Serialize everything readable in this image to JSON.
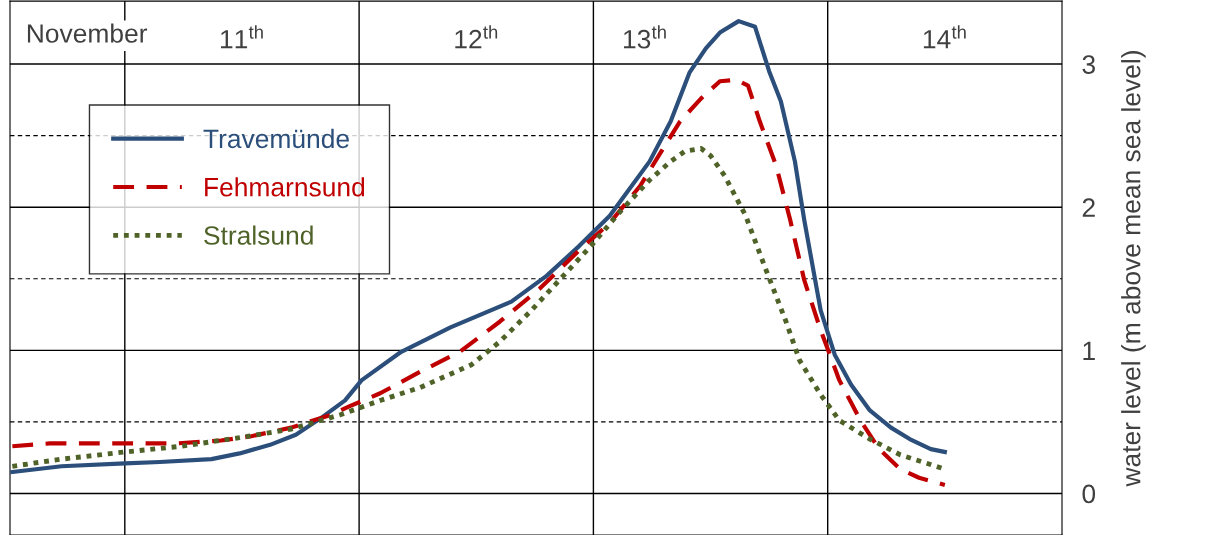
{
  "chart_data": {
    "type": "line",
    "ylabel": "water level (m above mean sea level)",
    "annotations": [
      "November"
    ],
    "xlim": [
      10.51,
      15.0
    ],
    "xticks": [
      {
        "value": 11.5,
        "label": "11$^{th}$"
      },
      {
        "value": 12.5,
        "label": "12$^{th}$"
      },
      {
        "value": 13.22,
        "label": "13$^{th}$"
      },
      {
        "value": 14.5,
        "label": "14$^{th}$"
      }
    ],
    "ylim": [
      -0.29,
      3.44
    ],
    "yticks": [
      0,
      1,
      2,
      3
    ],
    "ref_lines": [
      {
        "axis": "x",
        "value": 11,
        "color": "#000000",
        "line_style": "solid"
      },
      {
        "axis": "x",
        "value": 12,
        "color": "#000000",
        "line_style": "solid"
      },
      {
        "axis": "x",
        "value": 13,
        "color": "#000000",
        "line_style": "solid"
      },
      {
        "axis": "x",
        "value": 14,
        "color": "#000000",
        "line_style": "solid"
      },
      {
        "axis": "y",
        "value": 0.5,
        "color": "#000000",
        "line_style": "dashed"
      },
      {
        "axis": "y",
        "value": 1.5,
        "color": "#000000",
        "line_style": "dashed"
      },
      {
        "axis": "y",
        "value": 2.5,
        "color": "#000000",
        "line_style": "dashed"
      }
    ],
    "grid": "y",
    "legend": "top left",
    "marker": "none",
    "series": [
      {
        "name": "Travemünde",
        "color": "#2b4f7a",
        "line_style": "solid",
        "x": [
          10.52,
          10.73,
          11.0,
          11.15,
          11.37,
          11.49,
          11.62,
          11.73,
          11.84,
          11.94,
          12.01,
          12.18,
          12.39,
          12.65,
          12.8,
          12.94,
          13.07,
          13.24,
          13.33,
          13.41,
          13.48,
          13.54,
          13.62,
          13.69,
          13.75,
          13.8,
          13.86,
          13.9,
          13.97,
          14.03,
          14.1,
          14.18,
          14.27,
          14.35,
          14.44,
          14.5
        ],
        "values": [
          0.15,
          0.19,
          0.21,
          0.22,
          0.24,
          0.28,
          0.34,
          0.41,
          0.53,
          0.65,
          0.79,
          0.99,
          1.16,
          1.34,
          1.52,
          1.73,
          1.94,
          2.32,
          2.6,
          2.94,
          3.11,
          3.22,
          3.3,
          3.26,
          2.95,
          2.74,
          2.32,
          1.91,
          1.28,
          0.97,
          0.76,
          0.58,
          0.46,
          0.38,
          0.31,
          0.29
        ]
      },
      {
        "name": "Fehmarnsund",
        "color": "#c00000",
        "line_style": "dashed",
        "x": [
          10.52,
          10.68,
          11.0,
          11.22,
          11.41,
          11.54,
          11.71,
          11.88,
          11.96,
          12.09,
          12.26,
          12.43,
          12.6,
          12.77,
          12.94,
          13.07,
          13.2,
          13.29,
          13.37,
          13.46,
          13.54,
          13.61,
          13.66,
          13.71,
          13.78,
          13.84,
          13.9,
          13.97,
          14.05,
          14.14,
          14.22,
          14.31,
          14.39,
          14.5
        ],
        "values": [
          0.33,
          0.35,
          0.35,
          0.35,
          0.37,
          0.4,
          0.46,
          0.55,
          0.61,
          0.7,
          0.85,
          0.99,
          1.2,
          1.43,
          1.7,
          1.89,
          2.15,
          2.39,
          2.6,
          2.76,
          2.88,
          2.89,
          2.85,
          2.6,
          2.29,
          1.91,
          1.49,
          1.14,
          0.79,
          0.51,
          0.31,
          0.17,
          0.11,
          0.06
        ]
      },
      {
        "name": "Stralsund",
        "color": "#4f6228",
        "line_style": "dotted",
        "x": [
          10.52,
          10.73,
          11.0,
          11.24,
          11.49,
          11.71,
          11.92,
          12.09,
          12.26,
          12.48,
          12.6,
          12.73,
          12.86,
          12.99,
          13.12,
          13.24,
          13.33,
          13.39,
          13.46,
          13.5,
          13.56,
          13.65,
          13.73,
          13.82,
          13.88,
          13.97,
          14.05,
          14.18,
          14.31,
          14.5
        ],
        "values": [
          0.19,
          0.24,
          0.29,
          0.33,
          0.39,
          0.45,
          0.55,
          0.65,
          0.74,
          0.9,
          1.06,
          1.27,
          1.5,
          1.73,
          1.98,
          2.19,
          2.32,
          2.39,
          2.41,
          2.36,
          2.22,
          1.94,
          1.59,
          1.21,
          0.93,
          0.69,
          0.51,
          0.38,
          0.27,
          0.17
        ]
      }
    ]
  }
}
